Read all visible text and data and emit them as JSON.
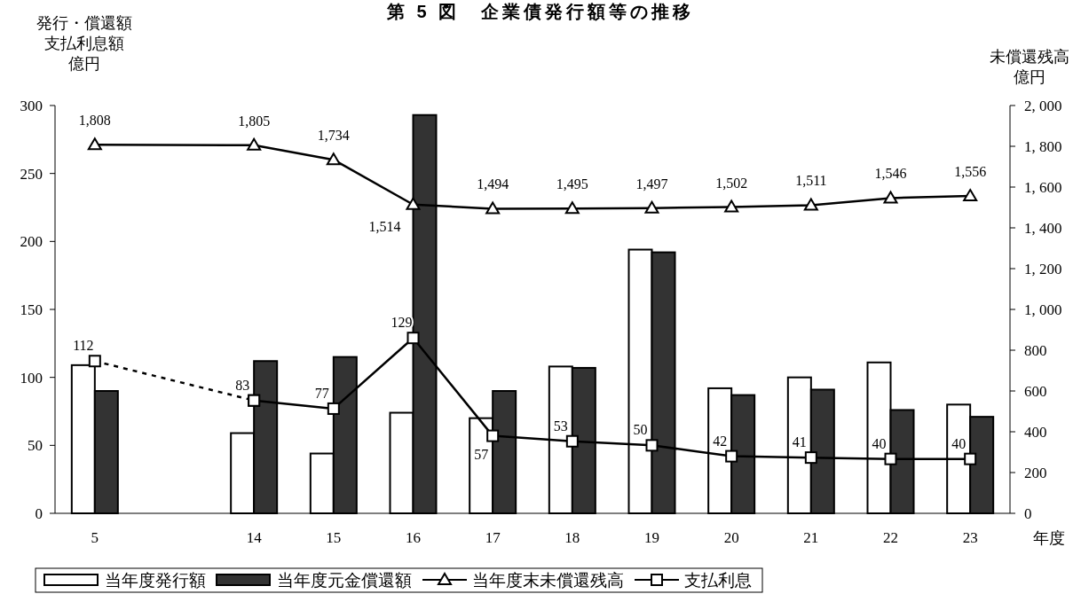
{
  "chart_data": {
    "type": "bar",
    "title": "第 5 図　企業債発行額等の推移",
    "ylabel": "発行・償還額支払利息額",
    "y2label": "未償還残高",
    "xlabel": "年度",
    "annotations": [
      "億円",
      "億円"
    ],
    "categories": [
      "5",
      null,
      "14",
      "15",
      "16",
      "17",
      "18",
      "19",
      "20",
      "21",
      "22",
      "23"
    ],
    "series": [
      {
        "name": "当年度発行額",
        "color": "#ffffff",
        "values": [
          109,
          null,
          59,
          44,
          74,
          70,
          108,
          194,
          92,
          100,
          111,
          80
        ]
      },
      {
        "name": "当年度元金償還額",
        "color": "#333333",
        "values": [
          90,
          null,
          112,
          115,
          293,
          90,
          107,
          192,
          87,
          91,
          76,
          71
        ]
      },
      {
        "name": "当年度末未償還残高",
        "type": "line",
        "axis": "y2",
        "marker": "triangle",
        "line_style": "solid",
        "color": "#000000",
        "values": [
          1808,
          null,
          1805,
          1734,
          1514,
          1494,
          1495,
          1497,
          1502,
          1511,
          1546,
          1556
        ],
        "value_labels": [
          "1,808",
          null,
          "1,805",
          "1,734",
          "1,514",
          "1,494",
          "1,495",
          "1,497",
          "1,502",
          "1,511",
          "1,546",
          "1,556"
        ]
      },
      {
        "name": "支払利息",
        "type": "line",
        "marker": "square",
        "line_style": "solid",
        "color": "#000000",
        "values": [
          null,
          null,
          83,
          77,
          129,
          57,
          53,
          50,
          42,
          41,
          40,
          40
        ],
        "value_labels": [
          null,
          null,
          "83",
          "77",
          "129",
          "57",
          "53",
          "50",
          "42",
          "41",
          "40",
          "40"
        ]
      },
      {
        "type": "line",
        "marker": "square",
        "line_style": "dashed",
        "color": "#000000",
        "values": [
          112,
          null,
          83,
          null,
          null,
          null,
          null,
          null,
          null,
          null,
          null,
          null
        ],
        "value_labels": [
          "112",
          null,
          null,
          null,
          null,
          null,
          null,
          null,
          null,
          null,
          null,
          null
        ]
      }
    ],
    "ylim": [
      0,
      300
    ],
    "yticks": [
      0,
      50,
      100,
      150,
      200,
      250,
      300
    ],
    "y2lim": [
      0,
      2000
    ],
    "y2ticks": [
      0,
      {
        "value": 200,
        "label": "200"
      },
      {
        "value": 400,
        "label": "400"
      },
      {
        "value": 600,
        "label": "600"
      },
      {
        "value": 800,
        "label": "800"
      },
      {
        "value": 1000,
        "label": "1, 000"
      },
      {
        "value": 1200,
        "label": "1, 200"
      },
      {
        "value": 1400,
        "label": "1, 400"
      },
      {
        "value": 1600,
        "label": "1, 600"
      },
      {
        "value": 1800,
        "label": "1, 800"
      },
      {
        "value": 2000,
        "label": "2, 000"
      }
    ],
    "grid": false,
    "legend": "bottom"
  }
}
